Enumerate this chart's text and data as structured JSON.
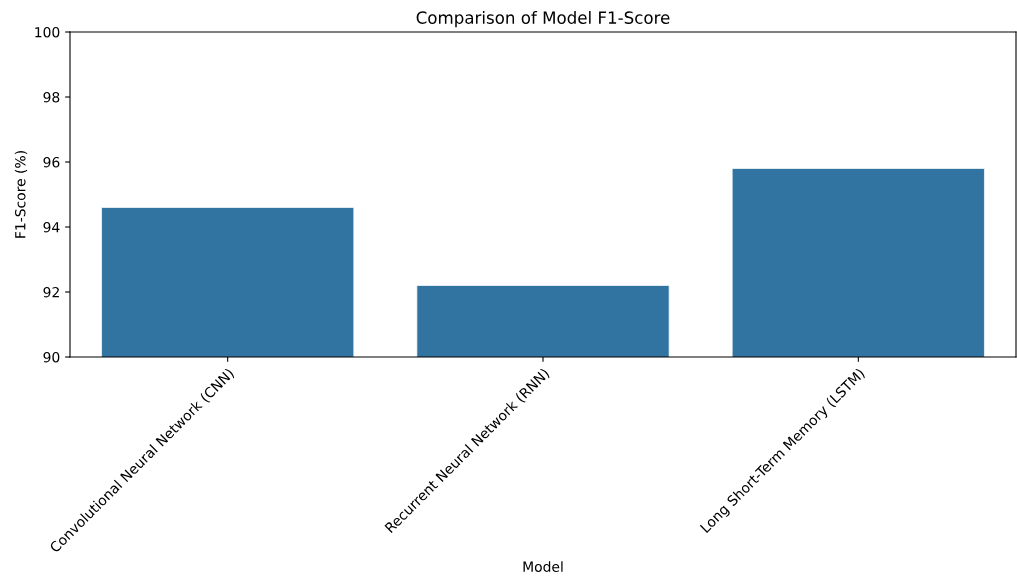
{
  "chart_data": {
    "type": "bar",
    "title": "Comparison of Model F1-Score",
    "xlabel": "Model",
    "ylabel": "F1-Score (%)",
    "categories": [
      "Convolutional Neural Network (CNN)",
      "Recurrent Neural Network (RNN)",
      "Long Short-Term Memory (LSTM)"
    ],
    "values": [
      94.6,
      92.2,
      95.8
    ],
    "color": "#3274a1",
    "ylim": [
      90,
      100
    ],
    "yticks": [
      90,
      92,
      94,
      96,
      98,
      100
    ],
    "grid": false,
    "legend": false
  }
}
